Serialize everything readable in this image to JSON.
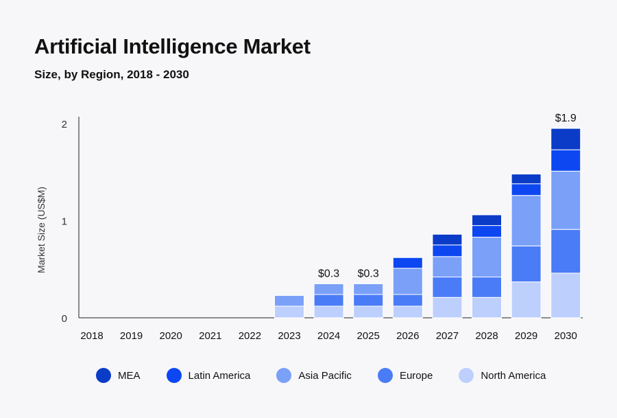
{
  "chart_data": {
    "type": "bar",
    "stacked": true,
    "title": "Artificial Intelligence Market",
    "subtitle": "Size, by Region, 2018 - 2030",
    "xlabel": "",
    "ylabel": "Market Size (US$M)",
    "ylim": [
      0,
      2
    ],
    "yticks": [
      "0",
      "1",
      "2"
    ],
    "categories": [
      "2018",
      "2019",
      "2020",
      "2021",
      "2022",
      "2023",
      "2024",
      "2025",
      "2026",
      "2027",
      "2028",
      "2029",
      "2030"
    ],
    "series": [
      {
        "name": "North America",
        "color": "#bdcffd",
        "values": [
          0,
          0,
          0,
          0,
          0,
          0.12,
          0.12,
          0.12,
          0.12,
          0.21,
          0.21,
          0.37,
          0.46
        ]
      },
      {
        "name": "Europe",
        "color": "#4a7cf7",
        "values": [
          0,
          0,
          0,
          0,
          0,
          0,
          0.12,
          0.12,
          0.12,
          0.21,
          0.21,
          0.37,
          0.45
        ]
      },
      {
        "name": "Asia Pacific",
        "color": "#7aa0f8",
        "values": [
          0,
          0,
          0,
          0,
          0,
          0.11,
          0.11,
          0.11,
          0.27,
          0.21,
          0.41,
          0.52,
          0.6
        ]
      },
      {
        "name": "Latin America",
        "color": "#0d47f2",
        "values": [
          0,
          0,
          0,
          0,
          0,
          0,
          0,
          0,
          0.11,
          0.12,
          0.12,
          0.12,
          0.22
        ]
      },
      {
        "name": "MEA",
        "color": "#0b3cc7",
        "values": [
          0,
          0,
          0,
          0,
          0,
          0,
          0,
          0,
          0,
          0.11,
          0.11,
          0.1,
          0.22
        ]
      }
    ],
    "data_labels": [
      {
        "category": "2024",
        "text": "$0.3"
      },
      {
        "category": "2025",
        "text": "$0.3"
      },
      {
        "category": "2030",
        "text": "$1.9"
      }
    ],
    "legend": {
      "position": "bottom",
      "order": [
        "MEA",
        "Latin America",
        "Asia Pacific",
        "Europe",
        "North America"
      ]
    },
    "grid": false
  }
}
